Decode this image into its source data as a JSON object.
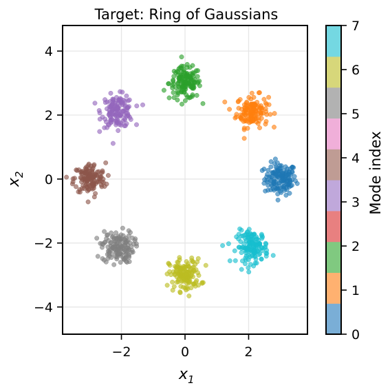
{
  "chart_data": {
    "type": "scatter",
    "title": "Target: Ring of Gaussians",
    "xlabel": {
      "main": "x",
      "sub": "1"
    },
    "ylabel": {
      "main": "x",
      "sub": "2"
    },
    "xlim": [
      -3.85,
      3.85
    ],
    "ylim": [
      -4.85,
      4.8
    ],
    "xticks": [
      -2,
      0,
      2
    ],
    "yticks": [
      -4,
      -2,
      0,
      2,
      4
    ],
    "grid": true,
    "points_per_cluster": 140,
    "cluster_spread": 0.25,
    "clusters": [
      {
        "mode": 0,
        "center": [
          3.0,
          0.0
        ],
        "color": "#1f77b4"
      },
      {
        "mode": 1,
        "center": [
          2.12,
          2.12
        ],
        "color": "#ff7f0e"
      },
      {
        "mode": 2,
        "center": [
          0.0,
          3.0
        ],
        "color": "#2ca02c"
      },
      {
        "mode": 3,
        "center": [
          -2.12,
          2.12
        ],
        "color": "#9467bd"
      },
      {
        "mode": 4,
        "center": [
          -3.0,
          0.0
        ],
        "color": "#8c564b"
      },
      {
        "mode": 5,
        "center": [
          -2.12,
          -2.12
        ],
        "color": "#7f7f7f"
      },
      {
        "mode": 6,
        "center": [
          0.0,
          -3.0
        ],
        "color": "#bcbd22"
      },
      {
        "mode": 7,
        "center": [
          2.12,
          -2.12
        ],
        "color": "#17becf"
      }
    ],
    "colorbar": {
      "label": "Mode index",
      "range": [
        0,
        7
      ],
      "ticks": [
        0,
        1,
        2,
        3,
        4,
        5,
        6,
        7
      ],
      "colors": [
        "#7aaed6",
        "#ffb170",
        "#80c980",
        "#e88080",
        "#c0a8db",
        "#bf9c94",
        "#f0afd9",
        "#b2b2b2",
        "#d7d77a",
        "#74d8e2"
      ]
    }
  }
}
